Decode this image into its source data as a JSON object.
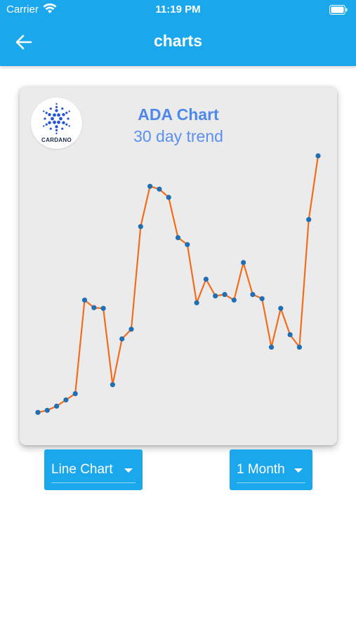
{
  "status_bar": {
    "carrier": "Carrier",
    "time": "11:19 PM"
  },
  "header": {
    "title": "charts",
    "back_icon": "arrow-left-icon"
  },
  "card": {
    "logo_text": "CARDANO",
    "logo_icon": "cardano-logo-icon"
  },
  "chart_data": {
    "type": "line",
    "title": "ADA Chart",
    "subtitle": "30 day trend",
    "line_color": "#f26d1b",
    "point_color": "#1f6fb4",
    "values": [
      1.0,
      1.15,
      1.45,
      1.9,
      2.35,
      9.1,
      8.55,
      8.5,
      3.0,
      6.3,
      7.0,
      14.4,
      17.3,
      17.1,
      16.5,
      13.6,
      13.1,
      8.9,
      10.6,
      9.4,
      9.5,
      9.1,
      11.8,
      9.5,
      9.2,
      5.7,
      8.5,
      6.6,
      5.7,
      14.9,
      19.5
    ],
    "ylim": [
      0,
      20
    ],
    "grid": false,
    "legend": "none"
  },
  "controls": {
    "chart_type": {
      "label": "Line Chart"
    },
    "period": {
      "label": "1 Month"
    }
  },
  "colors": {
    "appbar": "#1aa7ec",
    "card": "#ebebeb",
    "title": "#4f88ea"
  }
}
